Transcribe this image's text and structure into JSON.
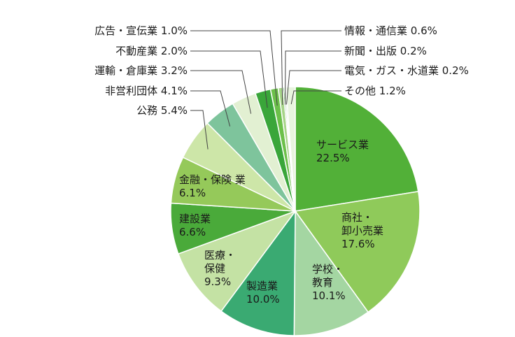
{
  "chart_data": {
    "type": "pie",
    "title": "",
    "slices": [
      {
        "name": "サービス業",
        "value": 22.5,
        "color": "#52b038",
        "label_lines": [
          "サービス業",
          "22.5%"
        ]
      },
      {
        "name": "商社・卸小売業",
        "value": 17.6,
        "color": "#8fca5a",
        "label_lines": [
          "商社・",
          "卸小売業",
          "17.6%"
        ]
      },
      {
        "name": "学校・教育",
        "value": 10.1,
        "color": "#a4d6a2",
        "label_lines": [
          "学校・",
          "教育",
          "10.1%"
        ]
      },
      {
        "name": "製造業",
        "value": 10.0,
        "color": "#3aaa72",
        "label_lines": [
          "製造業",
          "10.0%"
        ]
      },
      {
        "name": "医療・保健",
        "value": 9.3,
        "color": "#c4e2a4",
        "label_lines": [
          "医療・",
          "保健",
          "9.3%"
        ]
      },
      {
        "name": "建設業",
        "value": 6.6,
        "color": "#4aaa3a",
        "label_lines": [
          "建設業",
          "6.6%"
        ]
      },
      {
        "name": "金融・保険業",
        "value": 6.1,
        "color": "#95c95a",
        "label_lines": [
          "金融・保険 業",
          "6.1%"
        ]
      },
      {
        "name": "公務",
        "value": 5.4,
        "color": "#cde6a8",
        "label_lines": [
          "公務 5.4%"
        ]
      },
      {
        "name": "非営利団体",
        "value": 4.1,
        "color": "#7ec49c",
        "label_lines": [
          "非営利団体 4.1%"
        ]
      },
      {
        "name": "運輸・倉庫業",
        "value": 3.2,
        "color": "#e2f0d2",
        "label_lines": [
          "運輸・倉庫業 3.2%"
        ]
      },
      {
        "name": "不動産業",
        "value": 2.0,
        "color": "#3aa63a",
        "label_lines": [
          "不動産業 2.0%"
        ]
      },
      {
        "name": "広告・宣伝業",
        "value": 1.0,
        "color": "#6cc04a",
        "label_lines": [
          "広告・宣伝業 1.0%"
        ]
      },
      {
        "name": "情報・通信業",
        "value": 0.6,
        "color": "#a6d488",
        "label_lines": [
          "情報・通信業 0.6%"
        ]
      },
      {
        "name": "新聞・出版",
        "value": 0.2,
        "color": "#5aaa5a",
        "label_lines": [
          "新聞・出版 0.2%"
        ]
      },
      {
        "name": "電気・ガス・水道業",
        "value": 0.2,
        "color": "#bfe0b0",
        "label_lines": [
          "電気・ガス・水道業 0.2%"
        ]
      },
      {
        "name": "その他",
        "value": 1.2,
        "color": "#e8f4de",
        "label_lines": [
          "その他 1.2%"
        ]
      }
    ]
  }
}
